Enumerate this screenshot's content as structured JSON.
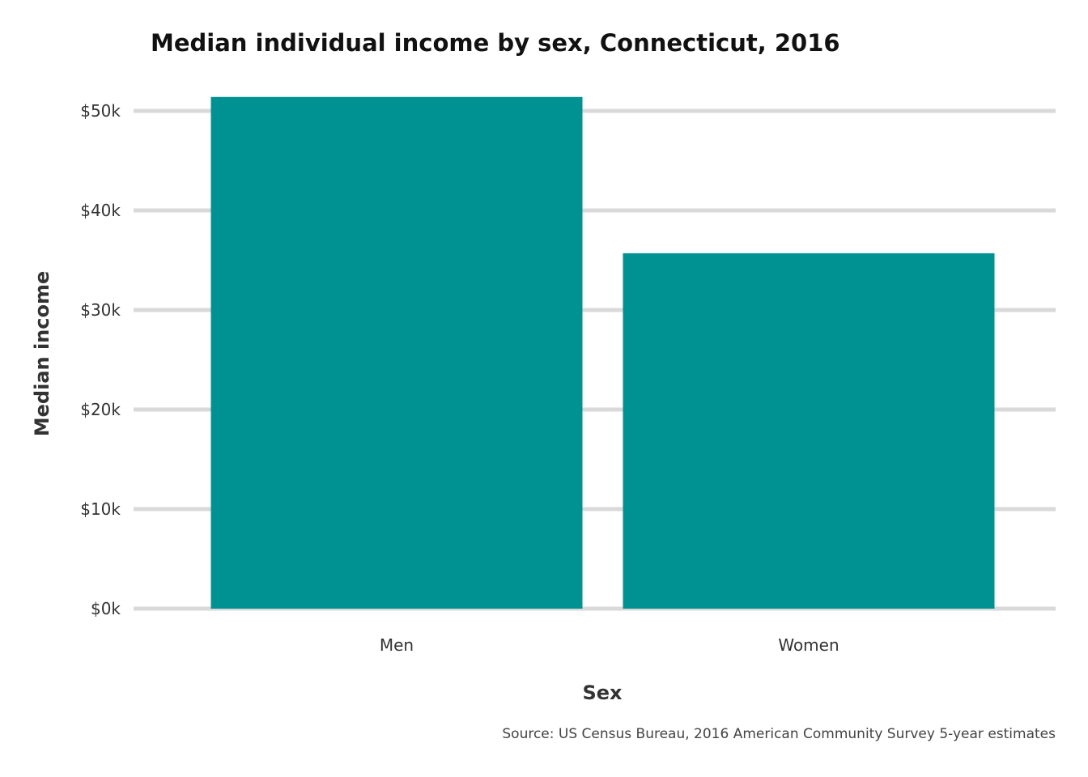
{
  "chart_data": {
    "type": "bar",
    "title": "Median individual income by sex, Connecticut, 2016",
    "xlabel": "Sex",
    "ylabel": "Median income",
    "categories": [
      "Men",
      "Women"
    ],
    "values": [
      51400,
      35700
    ],
    "ylim": [
      0,
      52000
    ],
    "yticks": [
      0,
      10000,
      20000,
      30000,
      40000,
      50000
    ],
    "ytick_labels": [
      "$0k",
      "$10k",
      "$20k",
      "$30k",
      "$40k",
      "$50k"
    ],
    "bar_color": "#009292",
    "grid": true,
    "legend": "none",
    "caption": "Source: US Census Bureau, 2016 American Community Survey 5-year estimates"
  }
}
